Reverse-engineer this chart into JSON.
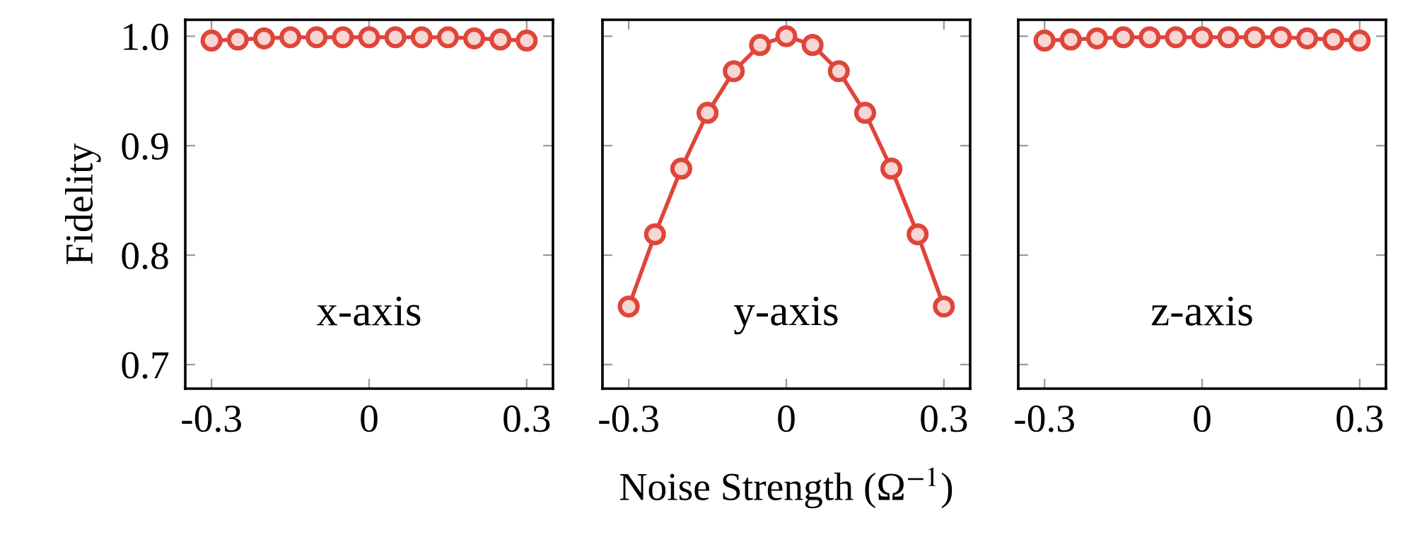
{
  "chart_data": [
    {
      "type": "line",
      "ylabel": "Fidelity",
      "annotations": [
        "x-axis"
      ],
      "marker": "circle",
      "x": [
        -0.3,
        -0.25,
        -0.2,
        -0.15,
        -0.1,
        -0.05,
        0,
        0.05,
        0.1,
        0.15,
        0.2,
        0.25,
        0.3
      ],
      "series": [
        {
          "color": "#e0453a",
          "values": [
            0.996,
            0.997,
            0.998,
            0.999,
            0.999,
            0.999,
            0.999,
            0.999,
            0.999,
            0.999,
            0.998,
            0.997,
            0.996
          ]
        }
      ],
      "xlim": [
        -0.35,
        0.35
      ],
      "xticks": [
        -0.3,
        0,
        0.3
      ],
      "ylim": [
        0.678,
        1.015
      ],
      "yticks": [
        0.7,
        0.8,
        0.9,
        {
          "value": 1.0,
          "label": "1.0"
        }
      ],
      "grid": false
    },
    {
      "type": "line",
      "xlabel": "Noise Strength (Ω$^{−1}$)",
      "annotations": [
        "y-axis"
      ],
      "marker": "circle",
      "x": [
        -0.3,
        -0.25,
        -0.2,
        -0.15,
        -0.1,
        -0.05,
        0,
        0.05,
        0.1,
        0.15,
        0.2,
        0.25,
        0.3
      ],
      "series": [
        {
          "color": "#e0453a",
          "values": [
            0.753,
            0.819,
            0.879,
            0.93,
            0.968,
            0.992,
            1.0,
            0.992,
            0.968,
            0.93,
            0.879,
            0.819,
            0.753
          ]
        }
      ],
      "xlim": [
        -0.35,
        0.35
      ],
      "xticks": [
        -0.3,
        0,
        0.3
      ],
      "ylim": [
        0.678,
        1.015
      ],
      "yticks": [
        0.7,
        0.8,
        0.9,
        1.0
      ],
      "grid": false,
      "tick_labels": "x"
    },
    {
      "type": "line",
      "annotations": [
        "z-axis"
      ],
      "marker": "circle",
      "x": [
        -0.3,
        -0.25,
        -0.2,
        -0.15,
        -0.1,
        -0.05,
        0,
        0.05,
        0.1,
        0.15,
        0.2,
        0.25,
        0.3
      ],
      "series": [
        {
          "color": "#e0453a",
          "values": [
            0.996,
            0.997,
            0.998,
            0.999,
            0.999,
            0.999,
            0.999,
            0.999,
            0.999,
            0.999,
            0.998,
            0.997,
            0.996
          ]
        }
      ],
      "xlim": [
        -0.35,
        0.35
      ],
      "xticks": [
        -0.3,
        0,
        0.3
      ],
      "ylim": [
        0.678,
        1.015
      ],
      "yticks": [
        0.7,
        0.8,
        0.9,
        1.0
      ],
      "grid": false,
      "tick_labels": "x"
    }
  ]
}
